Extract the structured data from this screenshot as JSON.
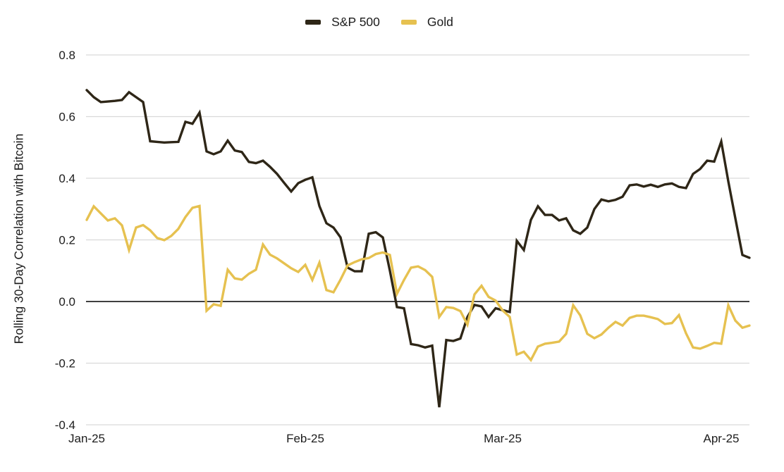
{
  "legend": {
    "items": [
      {
        "label": "S&P 500"
      },
      {
        "label": "Gold"
      }
    ]
  },
  "chart_data": {
    "type": "line",
    "title": "",
    "xlabel": "",
    "ylabel": "Rolling 30-Day Correlation with Bitcoin",
    "ylim": [
      -0.4,
      0.8
    ],
    "grid": "horizontal",
    "zero_line": true,
    "legend_position": "top-center",
    "y_ticks": [
      0.8,
      0.6,
      0.4,
      0.2,
      0.0,
      -0.2,
      -0.4
    ],
    "y_tick_labels": [
      "0.8",
      "0.6",
      "0.4",
      "0.2",
      "0.0",
      "-0.2",
      "-0.4"
    ],
    "x_tick_labels": [
      "Jan-25",
      "Feb-25",
      "Mar-25",
      "Apr-25"
    ],
    "x_tick_indices": [
      0,
      31,
      59,
      90
    ],
    "x_start_date": "2025-01-01",
    "x_frequency": "daily",
    "n_points": 95,
    "colors": {
      "sp500": "#2e2617",
      "gold": "#e6c150",
      "gridline": "#d9d9d9",
      "zero_line": "#404040"
    },
    "series": [
      {
        "name": "S&P 500",
        "color": "#2e2617",
        "values": [
          0.686,
          0.663,
          0.647,
          0.649,
          0.651,
          0.654,
          0.679,
          0.663,
          0.647,
          0.52,
          0.518,
          0.516,
          0.517,
          0.518,
          0.583,
          0.577,
          0.613,
          0.487,
          0.478,
          0.487,
          0.522,
          0.49,
          0.485,
          0.453,
          0.449,
          0.457,
          0.437,
          0.414,
          0.385,
          0.357,
          0.384,
          0.395,
          0.403,
          0.31,
          0.254,
          0.24,
          0.208,
          0.11,
          0.098,
          0.098,
          0.22,
          0.225,
          0.208,
          0.1,
          -0.018,
          -0.022,
          -0.138,
          -0.142,
          -0.149,
          -0.143,
          -0.343,
          -0.125,
          -0.128,
          -0.12,
          -0.05,
          -0.011,
          -0.016,
          -0.05,
          -0.022,
          -0.028,
          -0.034,
          0.197,
          0.167,
          0.265,
          0.309,
          0.281,
          0.281,
          0.263,
          0.27,
          0.231,
          0.22,
          0.24,
          0.3,
          0.331,
          0.325,
          0.33,
          0.34,
          0.377,
          0.38,
          0.373,
          0.379,
          0.372,
          0.38,
          0.383,
          0.372,
          0.368,
          0.414,
          0.43,
          0.457,
          0.454,
          0.519,
          0.39,
          0.27,
          0.151,
          0.142
        ]
      },
      {
        "name": "Gold",
        "color": "#e6c150",
        "values": [
          0.265,
          0.309,
          0.286,
          0.263,
          0.27,
          0.247,
          0.167,
          0.24,
          0.248,
          0.231,
          0.206,
          0.199,
          0.213,
          0.236,
          0.274,
          0.304,
          0.31,
          -0.03,
          -0.009,
          -0.014,
          0.103,
          0.075,
          0.071,
          0.09,
          0.103,
          0.185,
          0.152,
          0.14,
          0.124,
          0.108,
          0.096,
          0.119,
          0.07,
          0.126,
          0.037,
          0.03,
          0.071,
          0.117,
          0.128,
          0.137,
          0.141,
          0.154,
          0.159,
          0.151,
          0.025,
          0.07,
          0.11,
          0.114,
          0.102,
          0.08,
          -0.05,
          -0.018,
          -0.021,
          -0.031,
          -0.075,
          0.023,
          0.051,
          0.015,
          0.003,
          -0.029,
          -0.05,
          -0.172,
          -0.163,
          -0.19,
          -0.146,
          -0.137,
          -0.134,
          -0.13,
          -0.105,
          -0.012,
          -0.045,
          -0.105,
          -0.119,
          -0.107,
          -0.085,
          -0.066,
          -0.078,
          -0.053,
          -0.046,
          -0.046,
          -0.051,
          -0.057,
          -0.073,
          -0.07,
          -0.044,
          -0.103,
          -0.149,
          -0.153,
          -0.144,
          -0.134,
          -0.137,
          -0.012,
          -0.062,
          -0.085,
          -0.078
        ]
      }
    ]
  }
}
